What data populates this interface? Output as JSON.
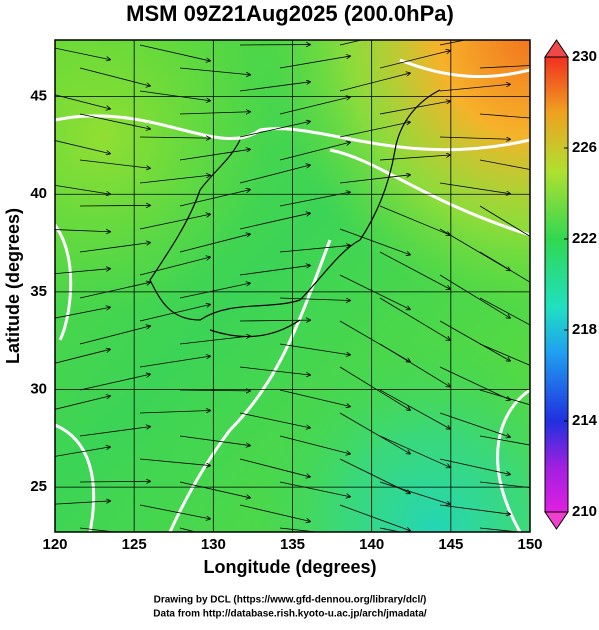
{
  "title": "MSM 09Z21Aug2025 (200.0hPa)",
  "x_axis": {
    "label": "Longitude (degrees)",
    "lim": [
      120,
      150
    ],
    "ticks": [
      120,
      125,
      130,
      135,
      140,
      145,
      150
    ]
  },
  "y_axis": {
    "label": "Latitude  (degrees)",
    "lim": [
      22.7,
      47.9
    ],
    "ticks": [
      25,
      30,
      35,
      40,
      45
    ]
  },
  "colorbar": {
    "lim": [
      210,
      230
    ],
    "ticks": [
      210,
      214,
      218,
      222,
      226,
      230
    ]
  },
  "footer": [
    "Drawing by DCL (https://www.gfd-dennou.org/library/dcl/)",
    "Data from http://database.rish.kyoto-u.ac.jp/arch/jmadata/"
  ]
}
